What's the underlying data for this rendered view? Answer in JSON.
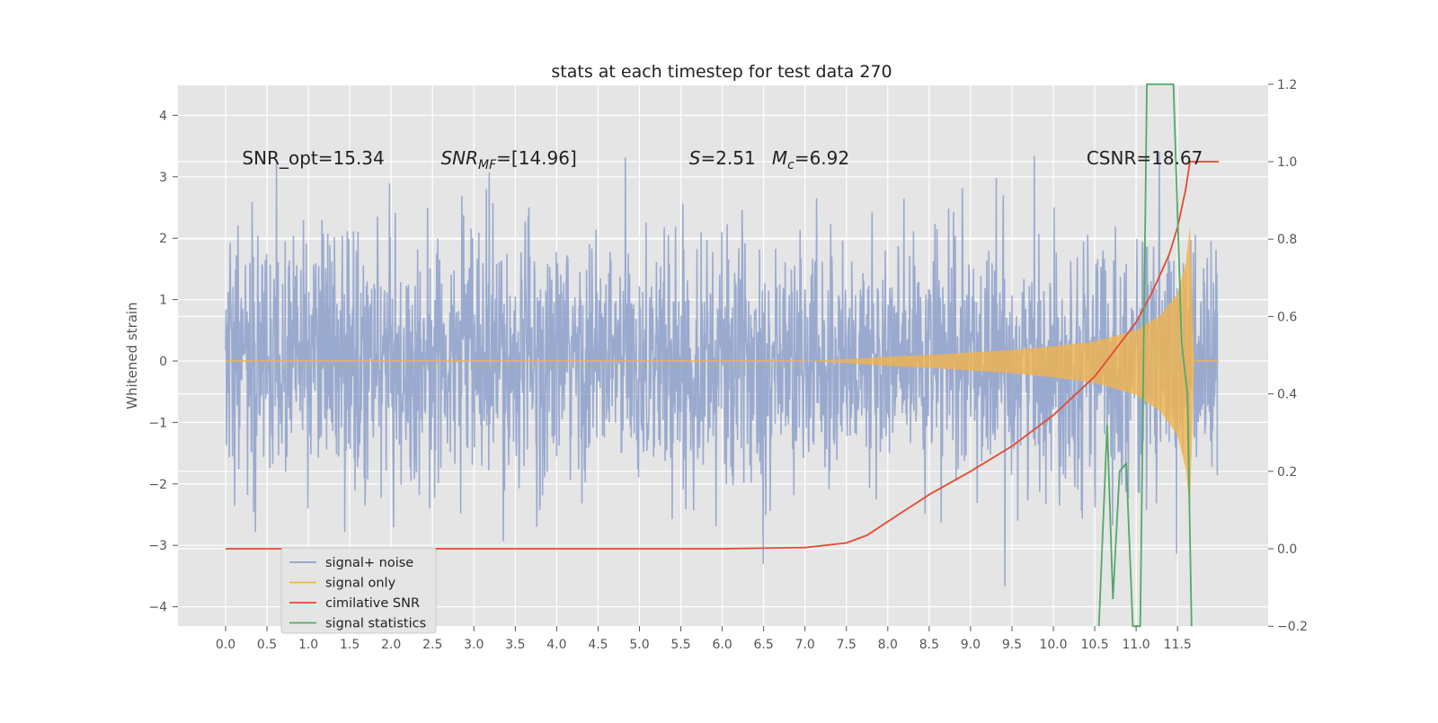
{
  "chart_data": {
    "type": "line",
    "title": "stats at each timestep for test data 270",
    "ylabel": "Whitened strain",
    "xlabel": "",
    "xlim": [
      -0.5,
      12.5
    ],
    "ylim": [
      -4.3,
      4.5
    ],
    "ylim_right": [
      -0.2,
      1.2
    ],
    "grid": true,
    "legend_position": "lower-left",
    "x_ticks": [
      "0.0",
      "0.5",
      "1.0",
      "1.5",
      "2.0",
      "2.5",
      "3.0",
      "3.5",
      "4.0",
      "4.5",
      "5.0",
      "5.5",
      "6.0",
      "6.5",
      "7.0",
      "7.5",
      "8.0",
      "8.5",
      "9.0",
      "9.5",
      "10.0",
      "10.5",
      "11.0",
      "11.5"
    ],
    "y_ticks": [
      "4",
      "3",
      "2",
      "1",
      "0",
      "−1",
      "−2",
      "−3",
      "−4"
    ],
    "y_ticks_right": [
      "1.2",
      "1.0",
      "0.8",
      "0.6",
      "0.4",
      "0.2",
      "0.0",
      "−0.2"
    ],
    "annotations": [
      {
        "text": "SNR_opt=15.34",
        "x": 0.2,
        "y": 3.2
      },
      {
        "text": "SNR_MF=[14.96]",
        "x": 2.6,
        "y": 3.2
      },
      {
        "text": "S=2.51",
        "x": 5.6,
        "y": 3.2
      },
      {
        "text": "M_c=6.92",
        "x": 6.6,
        "y": 3.2
      },
      {
        "text": "CSNR=18.67",
        "x": 10.4,
        "y": 3.2
      }
    ],
    "series": [
      {
        "name": "signal+ noise",
        "axis": "left",
        "color": "#8da0cb",
        "x_range": [
          0.0,
          12.0
        ],
        "noise_sigma": 1.0
      },
      {
        "name": "signal only",
        "axis": "left",
        "color": "#f0b44c",
        "envelope_x": [
          7.0,
          7.5,
          8.0,
          8.5,
          9.0,
          9.5,
          10.0,
          10.5,
          11.0,
          11.3,
          11.5,
          11.6,
          11.65,
          11.7,
          12.0
        ],
        "envelope_y": [
          0.0,
          0.03,
          0.07,
          0.1,
          0.14,
          0.18,
          0.24,
          0.32,
          0.5,
          0.75,
          1.1,
          1.6,
          2.2,
          0.0,
          0.0
        ]
      },
      {
        "name": "cimilative SNR",
        "axis": "right",
        "color": "#e24a33",
        "x": [
          0.0,
          6.0,
          7.0,
          7.5,
          7.75,
          8.0,
          8.5,
          9.0,
          9.5,
          10.0,
          10.5,
          11.0,
          11.2,
          11.4,
          11.5,
          11.6,
          11.65,
          12.0
        ],
        "y": [
          0.0,
          0.0,
          0.003,
          0.015,
          0.035,
          0.07,
          0.14,
          0.2,
          0.265,
          0.345,
          0.445,
          0.585,
          0.665,
          0.76,
          0.83,
          0.93,
          1.0,
          1.0
        ]
      },
      {
        "name": "signal statistics",
        "axis": "right",
        "color": "#55a868",
        "x": [
          10.55,
          10.65,
          10.72,
          10.8,
          10.88,
          10.96,
          11.05,
          11.13,
          11.22,
          11.35,
          11.45,
          11.55,
          11.62,
          11.67
        ],
        "y": [
          -0.2,
          0.32,
          -0.13,
          0.2,
          0.22,
          -0.2,
          -0.2,
          1.2,
          1.2,
          1.2,
          1.2,
          0.53,
          0.4,
          -0.2
        ]
      }
    ]
  }
}
